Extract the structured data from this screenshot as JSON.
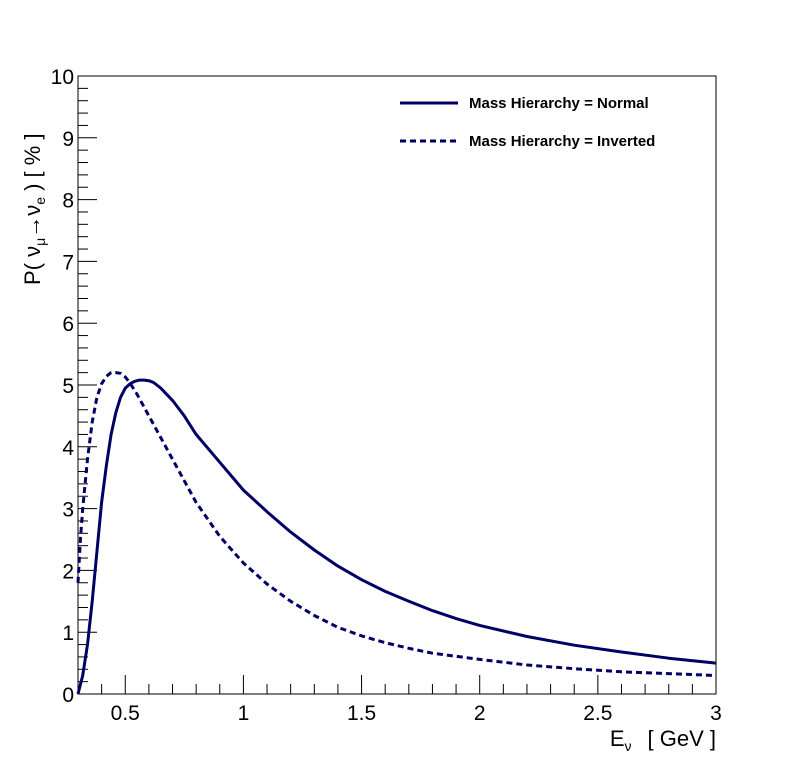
{
  "chart_data": {
    "type": "line",
    "title": "",
    "xlabel": {
      "symbol": "E",
      "subscript": "ν",
      "unit": "[ GeV ]"
    },
    "ylabel": {
      "prefix": "P( ν",
      "sub1": "μ",
      "arrow": "→",
      "nu": "ν",
      "sub2": "e",
      "suffix": " )  [ % ]"
    },
    "xlim": [
      0.3,
      3.0
    ],
    "ylim": [
      0,
      10
    ],
    "x_ticks": [
      0.5,
      1,
      1.5,
      2,
      2.5,
      3
    ],
    "x_tick_labels": [
      "0.5",
      "1",
      "1.5",
      "2",
      "2.5",
      "3"
    ],
    "y_ticks": [
      0,
      1,
      2,
      3,
      4,
      5,
      6,
      7,
      8,
      9,
      10
    ],
    "y_tick_labels": [
      "0",
      "1",
      "2",
      "3",
      "4",
      "5",
      "6",
      "7",
      "8",
      "9",
      "10"
    ],
    "grid": false,
    "legend_position": "top-right",
    "line_color": "#000066",
    "series": [
      {
        "name": "Mass Hierarchy = Normal",
        "style": "solid",
        "x": [
          0.3,
          0.32,
          0.34,
          0.36,
          0.38,
          0.4,
          0.42,
          0.44,
          0.46,
          0.48,
          0.5,
          0.52,
          0.54,
          0.56,
          0.58,
          0.6,
          0.62,
          0.65,
          0.7,
          0.75,
          0.8,
          0.9,
          1.0,
          1.1,
          1.2,
          1.3,
          1.4,
          1.5,
          1.6,
          1.7,
          1.8,
          1.9,
          2.0,
          2.2,
          2.4,
          2.6,
          2.8,
          3.0
        ],
        "y": [
          0.0,
          0.3,
          0.8,
          1.5,
          2.3,
          3.1,
          3.7,
          4.2,
          4.55,
          4.8,
          4.95,
          5.02,
          5.06,
          5.08,
          5.08,
          5.07,
          5.04,
          4.95,
          4.75,
          4.5,
          4.2,
          3.75,
          3.3,
          2.95,
          2.62,
          2.33,
          2.07,
          1.85,
          1.66,
          1.5,
          1.35,
          1.22,
          1.11,
          0.93,
          0.79,
          0.68,
          0.58,
          0.5
        ]
      },
      {
        "name": "Mass Hierarchy = Inverted",
        "style": "dashed",
        "x": [
          0.3,
          0.31,
          0.32,
          0.34,
          0.36,
          0.38,
          0.4,
          0.42,
          0.44,
          0.46,
          0.48,
          0.5,
          0.52,
          0.55,
          0.6,
          0.65,
          0.7,
          0.75,
          0.8,
          0.9,
          1.0,
          1.1,
          1.2,
          1.3,
          1.4,
          1.5,
          1.6,
          1.7,
          1.8,
          2.0,
          2.2,
          2.4,
          2.6,
          2.8,
          3.0
        ],
        "y": [
          1.8,
          2.5,
          3.0,
          3.8,
          4.4,
          4.8,
          5.02,
          5.14,
          5.2,
          5.2,
          5.19,
          5.13,
          5.03,
          4.85,
          4.5,
          4.15,
          3.8,
          3.45,
          3.1,
          2.55,
          2.12,
          1.78,
          1.5,
          1.27,
          1.08,
          0.94,
          0.83,
          0.74,
          0.66,
          0.56,
          0.47,
          0.41,
          0.36,
          0.33,
          0.3
        ]
      }
    ]
  }
}
